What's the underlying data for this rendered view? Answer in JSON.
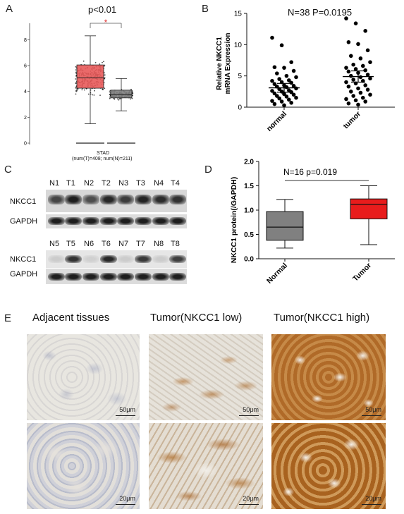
{
  "panels": {
    "A": {
      "letter": "A",
      "stat": "p<0.01",
      "star": "*",
      "xlabel": "STAD",
      "xsub": "(num(T)=408; num(N)=211)",
      "colors": {
        "tumor": "#e85a5a",
        "normal": "#808080"
      }
    },
    "B": {
      "letter": "B",
      "stat": "N=38 P=0.0195",
      "ylabel_line1": "Relative NKCC1",
      "ylabel_line2": "mRNA Expression"
    },
    "C": {
      "letter": "C",
      "lanes_top": [
        "N1",
        "T1",
        "N2",
        "T2",
        "N3",
        "T3",
        "N4",
        "T4"
      ],
      "lanes_bottom": [
        "N5",
        "T5",
        "N6",
        "T6",
        "N7",
        "T7",
        "N8",
        "T8"
      ],
      "rows": [
        "NKCC1",
        "GAPDH",
        "NKCC1",
        "GAPDH"
      ]
    },
    "D": {
      "letter": "D",
      "stat": "N=16  p=0.019",
      "ylabel": "NKCC1 protein(/GAPDH)",
      "colors": {
        "normal": "#808080",
        "tumor": "#e81c1c"
      }
    },
    "E": {
      "letter": "E",
      "columns": [
        "Adjacent tissues",
        "Tumor(NKCC1 low)",
        "Tumor(NKCC1 high)"
      ],
      "scalebars": [
        "50μm",
        "50μm",
        "50μm",
        "20μm",
        "20μm",
        "20μm"
      ]
    }
  },
  "chart_data": [
    {
      "type": "box",
      "panel": "A",
      "categories": [
        "",
        ""
      ],
      "ylim": [
        0,
        9
      ],
      "yticks": [
        0,
        2,
        4,
        6,
        8
      ],
      "series": [
        {
          "q1": 4.25,
          "median": 5.05,
          "q3": 6.05,
          "whisker_low": 1.5,
          "whisker_high": 8.3,
          "n": 408
        },
        {
          "q1": 3.5,
          "median": 3.75,
          "q3": 4.1,
          "whisker_low": 2.5,
          "whisker_high": 5.0,
          "n": 211
        }
      ]
    },
    {
      "type": "scatter",
      "panel": "B",
      "categories": [
        "normal",
        "tumor"
      ],
      "ylim": [
        0,
        15
      ],
      "yticks": [
        0,
        5,
        10,
        15
      ],
      "series": [
        {
          "mean": 3.1,
          "sem_low": 2.4,
          "sem_high": 3.8,
          "values": [
            11.1,
            9.9,
            7.2,
            6.4,
            6.3,
            5.8,
            5.4,
            5.0,
            4.8,
            4.5,
            4.3,
            4.2,
            4.0,
            3.9,
            3.7,
            3.5,
            3.4,
            3.3,
            3.2,
            3.0,
            2.9,
            2.7,
            2.6,
            2.5,
            2.4,
            2.2,
            2.1,
            2.0,
            1.8,
            1.7,
            1.5,
            1.4,
            1.2,
            1.0,
            0.9,
            0.7,
            0.5,
            0.3
          ]
        },
        {
          "mean": 4.9,
          "sem_low": 4.0,
          "sem_high": 5.8,
          "values": [
            14.2,
            13.4,
            12.2,
            10.4,
            10.1,
            9.1,
            8.2,
            7.8,
            7.2,
            6.8,
            6.6,
            6.3,
            6.1,
            5.9,
            5.7,
            5.5,
            5.2,
            5.0,
            4.8,
            4.6,
            4.4,
            4.2,
            4.0,
            3.8,
            3.5,
            3.3,
            3.0,
            2.8,
            2.5,
            2.3,
            2.0,
            1.8,
            1.5,
            1.3,
            1.1,
            0.9,
            0.6,
            0.4
          ]
        }
      ]
    },
    {
      "type": "box",
      "panel": "D",
      "categories": [
        "Normal",
        "Tumor"
      ],
      "ylim": [
        0,
        2.0
      ],
      "yticks": [
        0.0,
        0.5,
        1.0,
        1.5,
        2.0
      ],
      "series": [
        {
          "q1": 0.38,
          "median": 0.65,
          "q3": 0.97,
          "whisker_low": 0.22,
          "whisker_high": 1.22
        },
        {
          "q1": 0.82,
          "median": 1.12,
          "q3": 1.23,
          "whisker_low": 0.29,
          "whisker_high": 1.5
        }
      ]
    }
  ]
}
